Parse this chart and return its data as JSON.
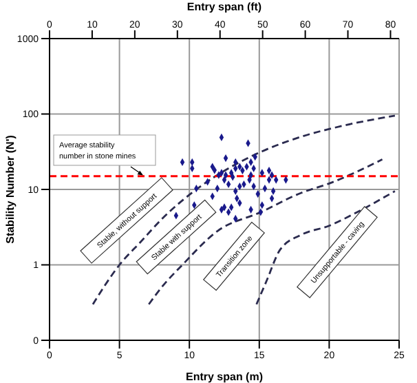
{
  "chart_data": {
    "type": "scatter",
    "xlabel": "Entry span (m)",
    "ylabel": "Stability Number (N')",
    "x2label": "Entry span (ft)",
    "xlim": [
      0,
      25
    ],
    "xticks": [
      0,
      5,
      10,
      15,
      20,
      25
    ],
    "x2lim": [
      0,
      82.02
    ],
    "x2ticks": [
      0,
      10,
      20,
      30,
      40,
      50,
      60,
      70,
      80
    ],
    "ylim": [
      0.1,
      1000
    ],
    "yticks": [
      {
        "value": 0.1,
        "label": "0"
      },
      1,
      10,
      100,
      1000
    ],
    "log": "y",
    "grid": true,
    "annotations": [
      "Stable, without support",
      "Stable with support",
      "Transition zone",
      "Unsupportable - caving"
    ],
    "ref_lines": [
      {
        "axis": "y",
        "value": 15,
        "label": "Average stability number in stone mines",
        "color": "#ff0000",
        "line_style": "dashed"
      }
    ],
    "series": [
      {
        "color": "#1a1a8c",
        "marker": "diamond",
        "x": [
          12.3,
          14.2,
          9.5,
          10.2,
          10.2,
          11.65,
          11.8,
          12.6,
          12.3,
          12.6,
          13,
          13.3,
          13.6,
          13.8,
          14.1,
          14.4,
          14.6,
          14.4,
          14.7,
          14.3,
          13.9,
          13.6,
          13.3,
          13.4,
          13.6,
          13,
          12.5,
          12.3,
          12.8,
          13.3,
          11.65,
          11.3,
          10.5,
          10.35,
          9.05,
          15.2,
          15.7,
          15.9,
          15.7,
          16.2,
          16.9,
          15.4,
          16,
          15.9,
          15.2,
          14.6,
          14.9,
          14.4,
          15.1,
          12.1,
          12.5,
          13.1,
          12.8,
          12,
          13.3
        ],
        "values": [
          49,
          41,
          23,
          23,
          19,
          20,
          18,
          26,
          16.6,
          15.5,
          16.6,
          23,
          20,
          17.8,
          20,
          23,
          19,
          15.5,
          27,
          13.4,
          11.7,
          11,
          9.5,
          7.6,
          6.6,
          5.8,
          5.8,
          5.4,
          5,
          4.1,
          8.1,
          12.6,
          10.3,
          6.2,
          4.5,
          16.6,
          17.8,
          15.5,
          13.4,
          13.4,
          13.4,
          10.3,
          9.5,
          7.6,
          6.2,
          11,
          8.7,
          5.4,
          5,
          15.5,
          13.4,
          14.6,
          11.7,
          10.3,
          19
        ]
      },
      {
        "type": "line",
        "color": "#2b2b4f",
        "line_style": "dashed",
        "marker": "none",
        "x": [
          3.1,
          4,
          5,
          6.5,
          8,
          10.5,
          13,
          15.2,
          18,
          21,
          24.7
        ],
        "values": [
          0.3,
          0.55,
          1,
          2,
          4,
          10,
          20,
          32,
          50,
          70,
          95
        ]
      },
      {
        "type": "line",
        "color": "#2b2b4f",
        "line_style": "dashed",
        "marker": "none",
        "x": [
          7.1,
          8,
          9.5,
          12,
          15.1,
          18,
          20,
          23.8
        ],
        "values": [
          0.3,
          0.5,
          1,
          2.8,
          5,
          9,
          12,
          25
        ]
      },
      {
        "type": "line",
        "color": "#2b2b4f",
        "line_style": "dashed",
        "marker": "none",
        "x": [
          14.8,
          15.5,
          16.5,
          18,
          20,
          22,
          24.7
        ],
        "values": [
          0.3,
          0.6,
          1.6,
          2.5,
          3.3,
          5,
          9.5
        ]
      }
    ]
  }
}
